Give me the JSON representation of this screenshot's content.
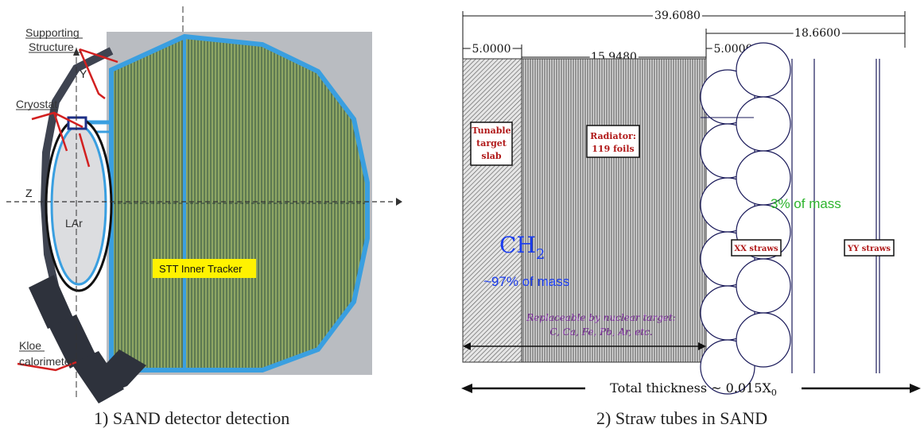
{
  "left_panel": {
    "labels": {
      "supporting_structure_line1": "Supporting",
      "supporting_structure_line2": "Structure",
      "cryostat": "Cryostat",
      "axis_y": "Y",
      "axis_z": "Z",
      "lar": "LAr",
      "stt_tracker": "STT Inner Tracker",
      "kloe_line1": "Kloe",
      "kloe_line2": "calorimeter"
    },
    "caption": "1) SAND detector detection"
  },
  "right_panel": {
    "dimensions": {
      "total": "39.6080",
      "straw_region": "18.6600",
      "target_slab": "5.0000",
      "radiator": "15.9480",
      "straw_layer": "5.0000"
    },
    "boxes": {
      "tunable_line1": "Tunable",
      "tunable_line2": "target",
      "tunable_line3": "slab",
      "radiator_line1": "Radiator:",
      "radiator_line2": "119 foils",
      "xx_straws": "XX straws",
      "yy_straws": "YY straws"
    },
    "annotations": {
      "ch2_main": "CH",
      "ch2_sub": "2",
      "ch2_mass": "~97% of mass",
      "straw_mass": "3% of mass",
      "replaceable_line1": "Replaceable by nuclear target:",
      "replaceable_line2": "C, Ca, Fe, Pb, Ar, etc.",
      "thickness_text": "Total thickness ~ 0.015X",
      "thickness_sub": "0"
    },
    "caption": "2) Straw tubes in SAND"
  },
  "colors": {
    "frame_blue": "#3a9fe0",
    "tracker_green": "#6f8f58",
    "stt_label_bg": "#fff200",
    "red_arrow": "#d22020",
    "box_text_red": "#b01818",
    "ch2_blue": "#1a3cf0",
    "mass_green": "#2db42d",
    "replace_purple": "#7a2a9a",
    "straw_navy": "#1a1a5a"
  }
}
